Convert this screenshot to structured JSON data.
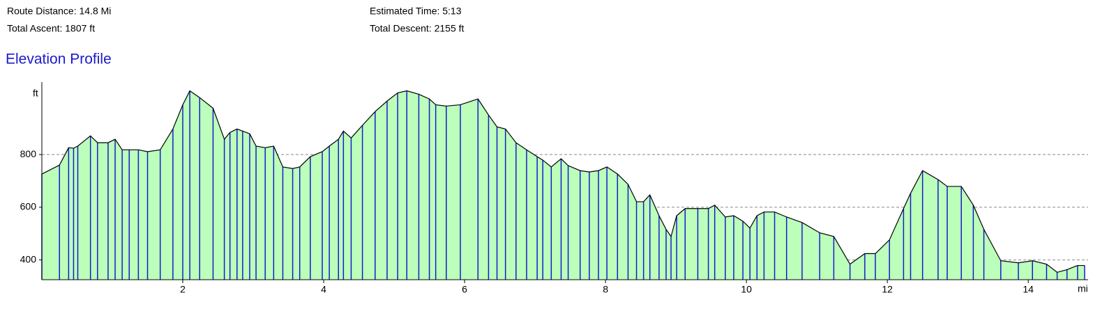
{
  "header": {
    "route_distance": "Route Distance: 14.8 Mi",
    "estimated_time": "Estimated Time: 5:13",
    "total_ascent": "Total Ascent: 1807 ft",
    "total_descent": "Total Descent: 2155 ft"
  },
  "chart_data": {
    "type": "area",
    "title": "Elevation Profile",
    "y_unit": "ft",
    "x_unit": "mi",
    "fill_color": "#bbffbb",
    "line_color": "#000000",
    "marker_color": "#1a1acc",
    "grid": true,
    "xlim": [
      0,
      14.8
    ],
    "ylim": [
      325,
      1075
    ],
    "xticks": [
      2,
      4,
      6,
      8,
      10,
      12,
      14
    ],
    "yticks": [
      400,
      600,
      800
    ],
    "x": [
      0,
      0.25,
      0.38,
      0.45,
      0.51,
      0.69,
      0.79,
      0.94,
      1.04,
      1.14,
      1.24,
      1.37,
      1.5,
      1.68,
      1.86,
      2.0,
      2.1,
      2.24,
      2.43,
      2.59,
      2.67,
      2.77,
      2.85,
      2.95,
      3.04,
      3.17,
      3.29,
      3.42,
      3.56,
      3.66,
      3.81,
      3.98,
      4.08,
      4.21,
      4.28,
      4.39,
      4.55,
      4.73,
      4.9,
      5.05,
      5.18,
      5.35,
      5.5,
      5.59,
      5.74,
      5.94,
      6.19,
      6.34,
      6.46,
      6.58,
      6.73,
      6.88,
      7.03,
      7.11,
      7.23,
      7.37,
      7.47,
      7.64,
      7.77,
      7.9,
      8.02,
      8.17,
      8.32,
      8.44,
      8.54,
      8.63,
      8.76,
      8.86,
      8.93,
      9.01,
      9.13,
      9.31,
      9.46,
      9.55,
      9.7,
      9.82,
      9.95,
      10.05,
      10.15,
      10.25,
      10.4,
      10.57,
      10.79,
      11.04,
      11.24,
      11.47,
      11.68,
      11.83,
      12.03,
      12.23,
      12.33,
      12.5,
      12.72,
      12.85,
      13.05,
      13.22,
      13.37,
      13.61,
      13.86,
      14.06,
      14.26,
      14.41,
      14.55,
      14.7,
      14.8
    ],
    "values": [
      726,
      760,
      826,
      824,
      832,
      871,
      845,
      845,
      858,
      818,
      818,
      818,
      811,
      818,
      897,
      989,
      1042,
      1016,
      976,
      858,
      884,
      897,
      889,
      879,
      832,
      826,
      832,
      753,
      747,
      753,
      792,
      811,
      832,
      858,
      889,
      863,
      911,
      963,
      1003,
      1034,
      1042,
      1029,
      1011,
      989,
      984,
      989,
      1011,
      950,
      905,
      897,
      845,
      818,
      792,
      779,
      753,
      784,
      758,
      739,
      734,
      739,
      753,
      726,
      687,
      621,
      621,
      647,
      568,
      516,
      489,
      568,
      595,
      595,
      595,
      608,
      563,
      568,
      547,
      521,
      568,
      582,
      582,
      563,
      542,
      503,
      489,
      384,
      424,
      424,
      476,
      595,
      653,
      739,
      705,
      679,
      679,
      608,
      516,
      397,
      389,
      397,
      384,
      353,
      363,
      379,
      379
    ]
  }
}
